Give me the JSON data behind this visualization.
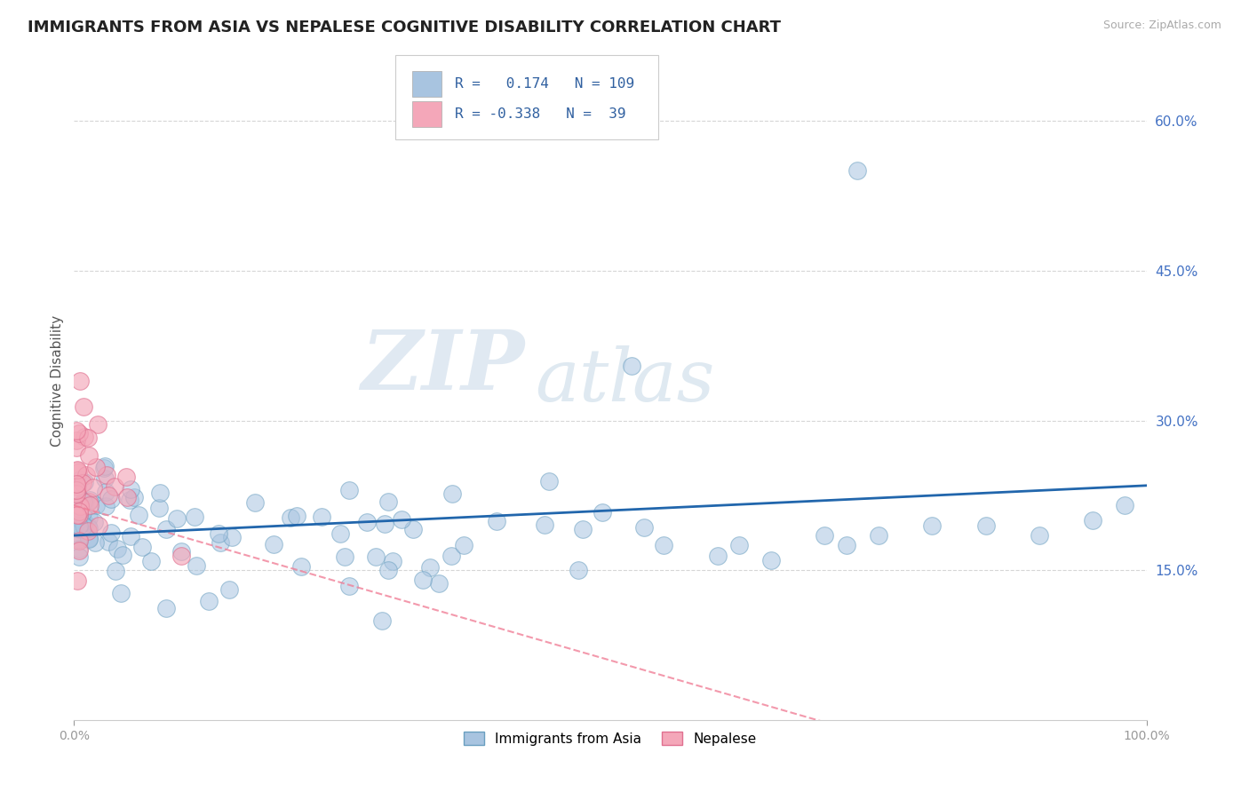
{
  "title": "IMMIGRANTS FROM ASIA VS NEPALESE COGNITIVE DISABILITY CORRELATION CHART",
  "source_text": "Source: ZipAtlas.com",
  "ylabel": "Cognitive Disability",
  "xlim": [
    0,
    1.0
  ],
  "ylim": [
    0.0,
    0.68
  ],
  "right_yticks": [
    0.15,
    0.3,
    0.45,
    0.6
  ],
  "right_yticklabels": [
    "15.0%",
    "30.0%",
    "45.0%",
    "60.0%"
  ],
  "xticklabels": [
    "0.0%",
    "100.0%"
  ],
  "xticks": [
    0,
    1.0
  ],
  "r_asia": 0.174,
  "n_asia": 109,
  "r_nepal": -0.338,
  "n_nepal": 39,
  "blue_scatter_color": "#a8c4e0",
  "blue_scatter_edge": "#6a9fc0",
  "pink_scatter_color": "#f4a7b9",
  "pink_scatter_edge": "#e07090",
  "blue_line_color": "#2166ac",
  "pink_line_color": "#f08098",
  "legend_blue_label": "Immigrants from Asia",
  "legend_pink_label": "Nepalese",
  "watermark_zip": "ZIP",
  "watermark_atlas": "atlas",
  "background_color": "#ffffff",
  "grid_color": "#cccccc",
  "title_fontsize": 13,
  "axis_label_fontsize": 11,
  "tick_fontsize": 10,
  "blue_trend_x0": 0.0,
  "blue_trend_y0": 0.185,
  "blue_trend_x1": 1.0,
  "blue_trend_y1": 0.235,
  "pink_trend_x0": 0.0,
  "pink_trend_y0": 0.215,
  "pink_trend_x1": 0.5,
  "pink_trend_y1": 0.06
}
